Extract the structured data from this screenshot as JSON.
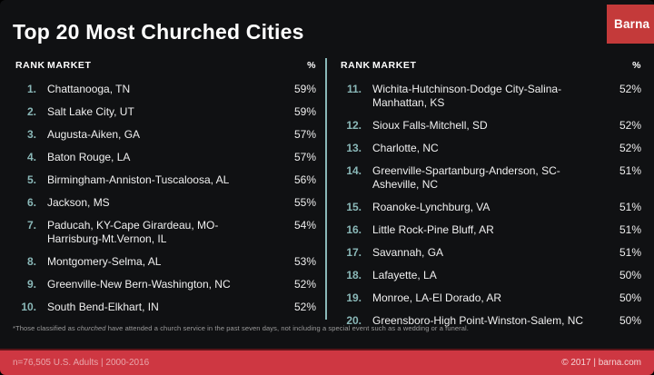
{
  "title": "Top 20 Most Churched Cities",
  "logo_text": "Barna",
  "tables": {
    "headers": {
      "rank": "RANK",
      "market": "MARKET",
      "percent": "%"
    },
    "left": {
      "rows": [
        {
          "rank": "1.",
          "market": "Chattanooga, TN",
          "percent": "59%"
        },
        {
          "rank": "2.",
          "market": "Salt Lake City, UT",
          "percent": "59%"
        },
        {
          "rank": "3.",
          "market": "Augusta-Aiken, GA",
          "percent": "57%"
        },
        {
          "rank": "4.",
          "market": "Baton Rouge, LA",
          "percent": "57%"
        },
        {
          "rank": "5.",
          "market": "Birmingham-Anniston-Tuscaloosa, AL",
          "percent": "56%"
        },
        {
          "rank": "6.",
          "market": "Jackson, MS",
          "percent": "55%"
        },
        {
          "rank": "7.",
          "market": "Paducah, KY-Cape Girardeau, MO-Harrisburg-Mt.Vernon, IL",
          "percent": "54%"
        },
        {
          "rank": "8.",
          "market": "Montgomery-Selma, AL",
          "percent": "53%"
        },
        {
          "rank": "9.",
          "market": "Greenville-New Bern-Washington, NC",
          "percent": "52%"
        },
        {
          "rank": "10.",
          "market": "South Bend-Elkhart, IN",
          "percent": "52%"
        }
      ]
    },
    "right": {
      "rows": [
        {
          "rank": "11.",
          "market": "Wichita-Hutchinson-Dodge City-Salina-Manhattan, KS",
          "percent": "52%"
        },
        {
          "rank": "12.",
          "market": "Sioux Falls-Mitchell, SD",
          "percent": "52%"
        },
        {
          "rank": "13.",
          "market": "Charlotte, NC",
          "percent": "52%"
        },
        {
          "rank": "14.",
          "market": "Greenville-Spartanburg-Anderson, SC-Asheville, NC",
          "percent": "51%"
        },
        {
          "rank": "15.",
          "market": "Roanoke-Lynchburg, VA",
          "percent": "51%"
        },
        {
          "rank": "16.",
          "market": "Little Rock-Pine Bluff, AR",
          "percent": "51%"
        },
        {
          "rank": "17.",
          "market": "Savannah, GA",
          "percent": "51%"
        },
        {
          "rank": "18.",
          "market": "Lafayette, LA",
          "percent": "50%"
        },
        {
          "rank": "19.",
          "market": "Monroe, LA-El Dorado, AR",
          "percent": "50%"
        },
        {
          "rank": "20.",
          "market": "Greensboro-High Point-Winston-Salem, NC",
          "percent": "50%"
        }
      ]
    }
  },
  "footnote": {
    "prefix": "*Those classified as ",
    "emphasis": "churched",
    "suffix": " have attended a church service in the past seven days, not including a special event such as a wedding or a funeral."
  },
  "footer": {
    "left": "n=76,505 U.S. Adults | 2000-2016",
    "right": "© 2017 | barna.com"
  },
  "colors": {
    "background": "#101113",
    "footer_red": "#ce3742",
    "logo_red": "#c43a3a",
    "rank_teal": "#8ab8b8",
    "divider_teal": "#8ab8b8"
  },
  "chart_data": {
    "type": "table",
    "title": "Top 20 Most Churched Cities",
    "columns": [
      "RANK",
      "MARKET",
      "%"
    ],
    "rows": [
      [
        1,
        "Chattanooga, TN",
        59
      ],
      [
        2,
        "Salt Lake City, UT",
        59
      ],
      [
        3,
        "Augusta-Aiken, GA",
        57
      ],
      [
        4,
        "Baton Rouge, LA",
        57
      ],
      [
        5,
        "Birmingham-Anniston-Tuscaloosa, AL",
        56
      ],
      [
        6,
        "Jackson, MS",
        55
      ],
      [
        7,
        "Paducah, KY-Cape Girardeau, MO-Harrisburg-Mt.Vernon, IL",
        54
      ],
      [
        8,
        "Montgomery-Selma, AL",
        53
      ],
      [
        9,
        "Greenville-New Bern-Washington, NC",
        52
      ],
      [
        10,
        "South Bend-Elkhart, IN",
        52
      ],
      [
        11,
        "Wichita-Hutchinson-Dodge City-Salina-Manhattan, KS",
        52
      ],
      [
        12,
        "Sioux Falls-Mitchell, SD",
        52
      ],
      [
        13,
        "Charlotte, NC",
        52
      ],
      [
        14,
        "Greenville-Spartanburg-Anderson, SC-Asheville, NC",
        51
      ],
      [
        15,
        "Roanoke-Lynchburg, VA",
        51
      ],
      [
        16,
        "Little Rock-Pine Bluff, AR",
        51
      ],
      [
        17,
        "Savannah, GA",
        51
      ],
      [
        18,
        "Lafayette, LA",
        50
      ],
      [
        19,
        "Monroe, LA-El Dorado, AR",
        50
      ],
      [
        20,
        "Greensboro-High Point-Winston-Salem, NC",
        50
      ]
    ],
    "value_unit": "percent",
    "source_note": "n=76,505 U.S. Adults | 2000-2016"
  }
}
